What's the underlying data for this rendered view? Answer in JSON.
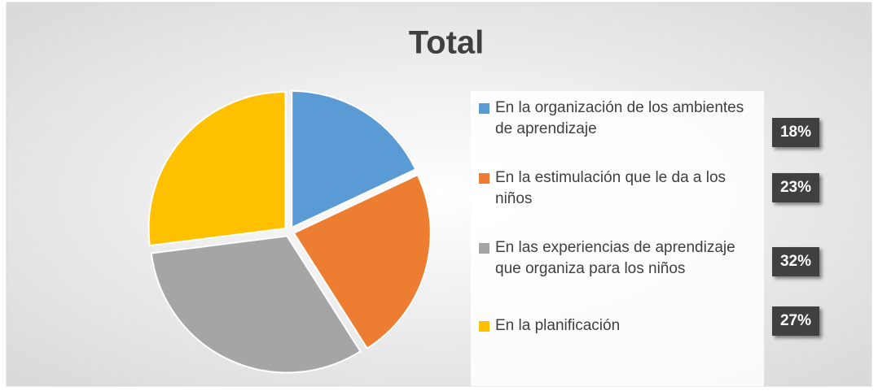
{
  "chart_data": {
    "type": "pie",
    "title": "Total",
    "categories": [
      "En la organización de los ambientes de aprendizaje",
      "En la estimulación que le da a los niños",
      "En las experiencias de aprendizaje que organiza para los niños",
      "En la planificación"
    ],
    "values": [
      18,
      23,
      32,
      27
    ],
    "value_labels": [
      "18%",
      "23%",
      "32%",
      "27%"
    ],
    "colors": [
      "#5b9bd5",
      "#ed7d31",
      "#a5a5a5",
      "#ffc000"
    ],
    "legend": "right"
  }
}
